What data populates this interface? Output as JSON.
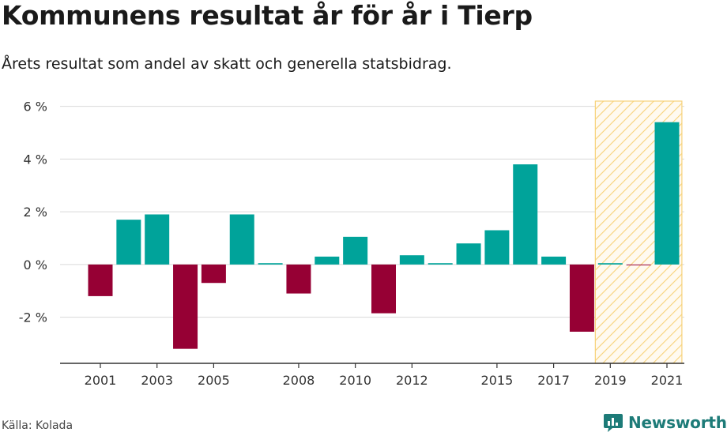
{
  "header": {
    "title": "Kommunens resultat år för år i Tierp",
    "subtitle": "Årets resultat som andel av skatt och generella statsbidrag."
  },
  "footer": {
    "source": "Källa: Kolada",
    "brand": "Newsworthy",
    "brand_icon": "newsworthy-logo-icon"
  },
  "colors": {
    "positive": "#00a39a",
    "negative": "#960034",
    "highlight_stroke": "#f7d27a",
    "grid": "#d9d9d9",
    "brand": "#1d7b78"
  },
  "chart_data": {
    "type": "bar",
    "title": "Kommunens resultat år för år i Tierp",
    "subtitle": "Årets resultat som andel av skatt och generella statsbidrag.",
    "categories": [
      "2001",
      "2002",
      "2003",
      "2004",
      "2005",
      "2006",
      "2007",
      "2008",
      "2009",
      "2010",
      "2011",
      "2012",
      "2013",
      "2014",
      "2015",
      "2016",
      "2017",
      "2018",
      "2019",
      "2020",
      "2021"
    ],
    "values": [
      -1.2,
      1.7,
      1.9,
      -3.2,
      -0.7,
      1.9,
      0.05,
      -1.1,
      0.3,
      1.05,
      -1.85,
      0.35,
      0.05,
      0.8,
      1.3,
      3.8,
      0.3,
      -2.55,
      0.05,
      -0.02,
      5.4
    ],
    "x_tick_labels": [
      "2001",
      "2003",
      "2005",
      "2008",
      "2010",
      "2012",
      "2015",
      "2017",
      "2019",
      "2021"
    ],
    "y_ticks": [
      -2,
      0,
      2,
      4,
      6
    ],
    "y_tick_labels": [
      "-2 %",
      "0 %",
      "2 %",
      "4 %",
      "6 %"
    ],
    "ylim": [
      -3.75,
      6.2
    ],
    "highlight_range": [
      "2019",
      "2021"
    ],
    "grid": true,
    "xlabel": "",
    "ylabel": ""
  }
}
